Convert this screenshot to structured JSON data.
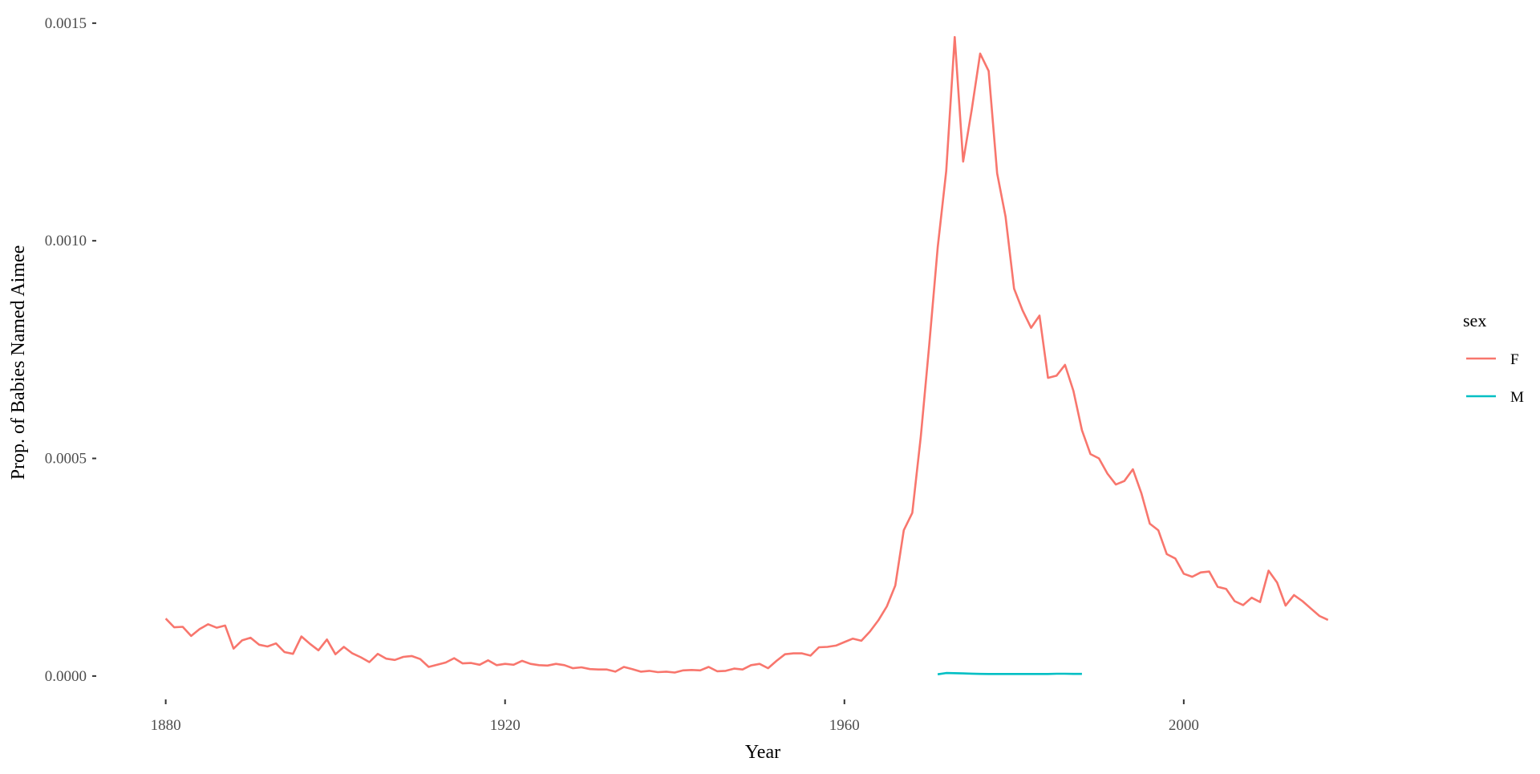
{
  "chart_data": {
    "type": "line",
    "xlabel": "Year",
    "ylabel": "Prop. of Babies Named Aimee",
    "xlim": [
      1872,
      2028
    ],
    "ylim": [
      -5e-05,
      0.00152
    ],
    "x_ticks": [
      1880,
      1920,
      1960,
      2000
    ],
    "x_tick_labels": [
      "1880",
      "1920",
      "1960",
      "2000"
    ],
    "y_ticks": [
      0,
      0.0005,
      0.001,
      0.0015
    ],
    "y_tick_labels": [
      "0.0000",
      "0.0005",
      "0.0010",
      "0.0015"
    ],
    "grid": false,
    "legend": {
      "title": "sex",
      "position": "right"
    },
    "series": [
      {
        "name": "F",
        "color": "#F8766D",
        "points": [
          [
            1880,
            0.000132
          ],
          [
            1881,
            0.000112
          ],
          [
            1882,
            0.000113
          ],
          [
            1883,
            9.2e-05
          ],
          [
            1884,
            0.000108
          ],
          [
            1885,
            0.000119
          ],
          [
            1886,
            0.000111
          ],
          [
            1887,
            0.000116
          ],
          [
            1888,
            6.3e-05
          ],
          [
            1889,
            8.2e-05
          ],
          [
            1890,
            8.8e-05
          ],
          [
            1891,
            7.2e-05
          ],
          [
            1892,
            6.8e-05
          ],
          [
            1893,
            7.5e-05
          ],
          [
            1894,
            5.5e-05
          ],
          [
            1895,
            5.1e-05
          ],
          [
            1896,
            9.1e-05
          ],
          [
            1897,
            7.4e-05
          ],
          [
            1898,
            5.9e-05
          ],
          [
            1899,
            8.4e-05
          ],
          [
            1900,
            5e-05
          ],
          [
            1901,
            6.7e-05
          ],
          [
            1902,
            5.2e-05
          ],
          [
            1903,
            4.3e-05
          ],
          [
            1904,
            3.2e-05
          ],
          [
            1905,
            5.1e-05
          ],
          [
            1906,
            4e-05
          ],
          [
            1907,
            3.7e-05
          ],
          [
            1908,
            4.4e-05
          ],
          [
            1909,
            4.6e-05
          ],
          [
            1910,
            3.9e-05
          ],
          [
            1911,
            2.1e-05
          ],
          [
            1912,
            2.6e-05
          ],
          [
            1913,
            3.1e-05
          ],
          [
            1914,
            4.1e-05
          ],
          [
            1915,
            2.9e-05
          ],
          [
            1916,
            3e-05
          ],
          [
            1917,
            2.6e-05
          ],
          [
            1918,
            3.6e-05
          ],
          [
            1919,
            2.5e-05
          ],
          [
            1920,
            2.8e-05
          ],
          [
            1921,
            2.6e-05
          ],
          [
            1922,
            3.5e-05
          ],
          [
            1923,
            2.8e-05
          ],
          [
            1924,
            2.5e-05
          ],
          [
            1925,
            2.4e-05
          ],
          [
            1926,
            2.8e-05
          ],
          [
            1927,
            2.5e-05
          ],
          [
            1928,
            1.8e-05
          ],
          [
            1929,
            2e-05
          ],
          [
            1930,
            1.6e-05
          ],
          [
            1931,
            1.5e-05
          ],
          [
            1932,
            1.5e-05
          ],
          [
            1933,
            1e-05
          ],
          [
            1934,
            2.1e-05
          ],
          [
            1935,
            1.6e-05
          ],
          [
            1936,
            1e-05
          ],
          [
            1937,
            1.2e-05
          ],
          [
            1938,
            9e-06
          ],
          [
            1939,
            1e-05
          ],
          [
            1940,
            8e-06
          ],
          [
            1941,
            1.3e-05
          ],
          [
            1942,
            1.4e-05
          ],
          [
            1943,
            1.3e-05
          ],
          [
            1944,
            2.1e-05
          ],
          [
            1945,
            1.1e-05
          ],
          [
            1946,
            1.2e-05
          ],
          [
            1947,
            1.7e-05
          ],
          [
            1948,
            1.5e-05
          ],
          [
            1949,
            2.5e-05
          ],
          [
            1950,
            2.8e-05
          ],
          [
            1951,
            1.8e-05
          ],
          [
            1952,
            3.5e-05
          ],
          [
            1953,
            5e-05
          ],
          [
            1954,
            5.2e-05
          ],
          [
            1955,
            5.2e-05
          ],
          [
            1956,
            4.7e-05
          ],
          [
            1957,
            6.6e-05
          ],
          [
            1958,
            6.7e-05
          ],
          [
            1959,
            7e-05
          ],
          [
            1960,
            7.8e-05
          ],
          [
            1961,
            8.6e-05
          ],
          [
            1962,
            8.1e-05
          ],
          [
            1963,
            0.000102
          ],
          [
            1964,
            0.000128
          ],
          [
            1965,
            0.00016
          ],
          [
            1966,
            0.000208
          ],
          [
            1967,
            0.000335
          ],
          [
            1968,
            0.000375
          ],
          [
            1969,
            0.00055
          ],
          [
            1970,
            0.00076
          ],
          [
            1971,
            0.000985
          ],
          [
            1972,
            0.00116
          ],
          [
            1973,
            0.001468
          ],
          [
            1974,
            0.001182
          ],
          [
            1975,
            0.0013
          ],
          [
            1976,
            0.00143
          ],
          [
            1977,
            0.00139
          ],
          [
            1978,
            0.001155
          ],
          [
            1979,
            0.001055
          ],
          [
            1980,
            0.00089
          ],
          [
            1981,
            0.00084
          ],
          [
            1982,
            0.0008
          ],
          [
            1983,
            0.000828
          ],
          [
            1984,
            0.000685
          ],
          [
            1985,
            0.00069
          ],
          [
            1986,
            0.000715
          ],
          [
            1987,
            0.000655
          ],
          [
            1988,
            0.000565
          ],
          [
            1989,
            0.00051
          ],
          [
            1990,
            0.0005
          ],
          [
            1991,
            0.000465
          ],
          [
            1992,
            0.00044
          ],
          [
            1993,
            0.000448
          ],
          [
            1994,
            0.000475
          ],
          [
            1995,
            0.00042
          ],
          [
            1996,
            0.00035
          ],
          [
            1997,
            0.000335
          ],
          [
            1998,
            0.00028
          ],
          [
            1999,
            0.00027
          ],
          [
            2000,
            0.000235
          ],
          [
            2001,
            0.000228
          ],
          [
            2002,
            0.000238
          ],
          [
            2003,
            0.00024
          ],
          [
            2004,
            0.000205
          ],
          [
            2005,
            0.0002
          ],
          [
            2006,
            0.000172
          ],
          [
            2007,
            0.000163
          ],
          [
            2008,
            0.00018
          ],
          [
            2009,
            0.00017
          ],
          [
            2010,
            0.000242
          ],
          [
            2011,
            0.000215
          ],
          [
            2012,
            0.000162
          ],
          [
            2013,
            0.000186
          ],
          [
            2014,
            0.000172
          ],
          [
            2015,
            0.000155
          ],
          [
            2016,
            0.000138
          ],
          [
            2017,
            0.000129
          ]
        ]
      },
      {
        "name": "M",
        "color": "#00BFC4",
        "points": [
          [
            1971,
            4e-06
          ],
          [
            1972,
            7e-06
          ],
          [
            1973,
            6.5e-06
          ],
          [
            1974,
            6e-06
          ],
          [
            1975,
            5.5e-06
          ],
          [
            1976,
            5e-06
          ],
          [
            1977,
            4.8e-06
          ],
          [
            1978,
            4.8e-06
          ],
          [
            1979,
            4.8e-06
          ],
          [
            1980,
            4.8e-06
          ],
          [
            1981,
            4.8e-06
          ],
          [
            1982,
            4.8e-06
          ],
          [
            1983,
            4.8e-06
          ],
          [
            1984,
            4.8e-06
          ],
          [
            1985,
            5.2e-06
          ],
          [
            1986,
            5.2e-06
          ],
          [
            1987,
            5e-06
          ],
          [
            1988,
            5e-06
          ]
        ]
      }
    ]
  }
}
